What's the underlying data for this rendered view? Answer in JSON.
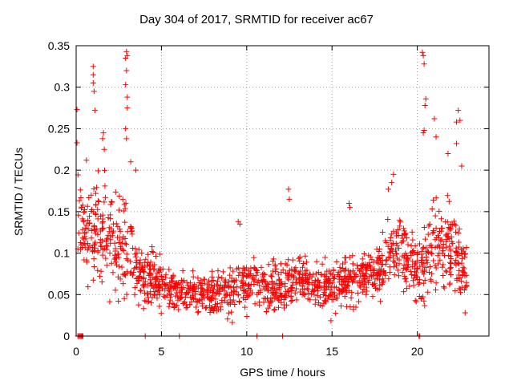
{
  "chart_data": {
    "type": "scatter",
    "title": "Day 304 of 2017, SRMTID for receiver ac67",
    "xlabel": "GPS time / hours",
    "ylabel": "SRMTID / TECUs",
    "xlim": [
      0,
      24.2
    ],
    "ylim": [
      0,
      0.35
    ],
    "xticks": [
      0,
      5,
      10,
      15,
      20
    ],
    "yticks": [
      0,
      0.05,
      0.1,
      0.15,
      0.2,
      0.25,
      0.3,
      0.35
    ],
    "ytick_labels": [
      "0",
      "0.05",
      "0.1",
      "0.15",
      "0.2",
      "0.25",
      "0.3",
      "0.35"
    ],
    "xtick_labels": [
      "0",
      "5",
      "10",
      "15",
      "20"
    ],
    "grid": true,
    "marker": "+",
    "color": "#ff0000",
    "envelope": {
      "hours": [
        0,
        0.5,
        1,
        1.5,
        2,
        2.5,
        3,
        3.5,
        4,
        4.5,
        5,
        6,
        7,
        8,
        9,
        10,
        11,
        12,
        13,
        14,
        15,
        16,
        17,
        18,
        18.5,
        19,
        19.5,
        20,
        20.5,
        21,
        21.5,
        22,
        22.5,
        23
      ],
      "median": [
        0.14,
        0.12,
        0.12,
        0.13,
        0.12,
        0.11,
        0.11,
        0.08,
        0.07,
        0.07,
        0.06,
        0.055,
        0.05,
        0.05,
        0.055,
        0.065,
        0.06,
        0.06,
        0.065,
        0.06,
        0.06,
        0.065,
        0.07,
        0.085,
        0.1,
        0.1,
        0.09,
        0.08,
        0.09,
        0.11,
        0.11,
        0.1,
        0.09,
        0.08
      ],
      "spread": [
        0.06,
        0.05,
        0.06,
        0.06,
        0.05,
        0.05,
        0.05,
        0.035,
        0.03,
        0.025,
        0.025,
        0.022,
        0.02,
        0.02,
        0.025,
        0.025,
        0.025,
        0.025,
        0.025,
        0.025,
        0.025,
        0.025,
        0.025,
        0.03,
        0.035,
        0.035,
        0.03,
        0.03,
        0.04,
        0.05,
        0.05,
        0.045,
        0.04,
        0.03
      ]
    },
    "spikes": [
      {
        "x": 1.0,
        "y": 0.325
      },
      {
        "x": 1.0,
        "y": 0.315
      },
      {
        "x": 1.0,
        "y": 0.305
      },
      {
        "x": 1.05,
        "y": 0.295
      },
      {
        "x": 0.05,
        "y": 0.273
      },
      {
        "x": 0.05,
        "y": 0.233
      },
      {
        "x": 1.1,
        "y": 0.272
      },
      {
        "x": 2.95,
        "y": 0.343
      },
      {
        "x": 3.0,
        "y": 0.338
      },
      {
        "x": 2.9,
        "y": 0.335
      },
      {
        "x": 2.95,
        "y": 0.32
      },
      {
        "x": 2.9,
        "y": 0.303
      },
      {
        "x": 3.0,
        "y": 0.288
      },
      {
        "x": 3.0,
        "y": 0.275
      },
      {
        "x": 2.9,
        "y": 0.25
      },
      {
        "x": 2.95,
        "y": 0.238
      },
      {
        "x": 1.6,
        "y": 0.245
      },
      {
        "x": 1.55,
        "y": 0.238
      },
      {
        "x": 1.65,
        "y": 0.225
      },
      {
        "x": 20.3,
        "y": 0.342
      },
      {
        "x": 20.35,
        "y": 0.338
      },
      {
        "x": 20.4,
        "y": 0.328
      },
      {
        "x": 20.5,
        "y": 0.286
      },
      {
        "x": 20.45,
        "y": 0.278
      },
      {
        "x": 20.4,
        "y": 0.248
      },
      {
        "x": 20.35,
        "y": 0.245
      },
      {
        "x": 22.4,
        "y": 0.272
      },
      {
        "x": 22.3,
        "y": 0.258
      },
      {
        "x": 22.5,
        "y": 0.26
      },
      {
        "x": 22.3,
        "y": 0.232
      },
      {
        "x": 12.45,
        "y": 0.177
      },
      {
        "x": 12.5,
        "y": 0.165
      },
      {
        "x": 9.5,
        "y": 0.138
      },
      {
        "x": 9.6,
        "y": 0.135
      },
      {
        "x": 18.6,
        "y": 0.195
      },
      {
        "x": 18.5,
        "y": 0.185
      },
      {
        "x": 18.3,
        "y": 0.177
      },
      {
        "x": 16.0,
        "y": 0.16
      },
      {
        "x": 16.05,
        "y": 0.155
      },
      {
        "x": 21.0,
        "y": 0.262
      },
      {
        "x": 21.1,
        "y": 0.24
      },
      {
        "x": 21.8,
        "y": 0.22
      },
      {
        "x": 22.6,
        "y": 0.205
      },
      {
        "x": 3.5,
        "y": 0.2
      },
      {
        "x": 3.2,
        "y": 0.21
      },
      {
        "x": 0.6,
        "y": 0.212
      }
    ],
    "zero_points": [
      0.1,
      0.15,
      0.2,
      0.25,
      0.3,
      0.35,
      0.4,
      4.05,
      6.05,
      10.6,
      12.1,
      20.1,
      20.15
    ]
  }
}
